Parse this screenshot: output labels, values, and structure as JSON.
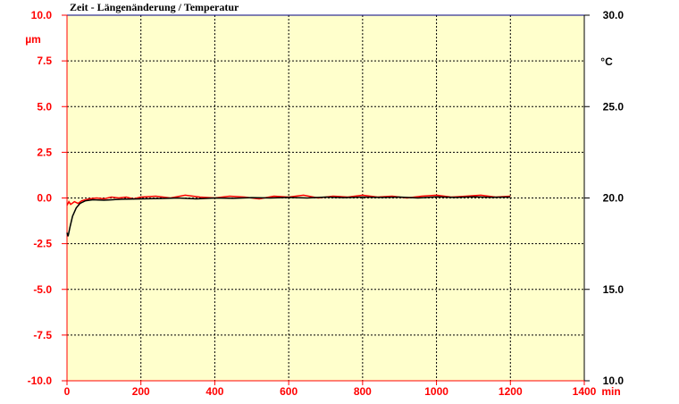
{
  "chart_data": {
    "type": "line",
    "title": "Zeit - Längenänderung  /  Temperatur",
    "xlabel": "min",
    "ylabel_left": "µm",
    "ylabel_right": "°C",
    "xlim": [
      0,
      1400
    ],
    "ylim_left": [
      -10,
      10
    ],
    "ylim_right": [
      10,
      30
    ],
    "xticks": [
      "0",
      "200",
      "400",
      "600",
      "800",
      "1000",
      "1200",
      "1400"
    ],
    "yticks_left": [
      "10.0",
      "7.5",
      "5.0",
      "2.5",
      "0.0",
      "-2.5",
      "-5.0",
      "-7.5",
      "-10.0"
    ],
    "yticks_right": [
      "30.0",
      "25.0",
      "20.0",
      "15.0",
      "10.0"
    ],
    "grid": true,
    "colors": {
      "left_axis": "#ff0000",
      "plot_bg": "#ffffcc",
      "top_border": "#000080"
    },
    "series": [
      {
        "axis": "left",
        "color": "#ff0000",
        "x": [
          0,
          5,
          10,
          20,
          30,
          40,
          50,
          60,
          80,
          100,
          120,
          140,
          160,
          180,
          200,
          240,
          280,
          320,
          360,
          400,
          440,
          480,
          520,
          560,
          600,
          640,
          680,
          720,
          760,
          800,
          840,
          880,
          920,
          960,
          1000,
          1040,
          1080,
          1120,
          1160,
          1200
        ],
        "y": [
          -0.4,
          -0.2,
          -0.35,
          -0.2,
          -0.3,
          -0.15,
          -0.1,
          -0.05,
          0.0,
          -0.05,
          0.05,
          0.0,
          0.05,
          -0.05,
          0.05,
          0.1,
          0.0,
          0.15,
          0.05,
          0.0,
          0.1,
          0.05,
          -0.05,
          0.1,
          0.05,
          0.15,
          0.0,
          0.1,
          0.05,
          0.15,
          0.05,
          0.1,
          0.0,
          0.1,
          0.15,
          0.05,
          0.1,
          0.15,
          0.05,
          0.1
        ]
      },
      {
        "axis": "right",
        "color": "#000000",
        "x": [
          0,
          3,
          8,
          15,
          25,
          35,
          50,
          70,
          100,
          150,
          200,
          250,
          300,
          350,
          400,
          450,
          500,
          550,
          600,
          650,
          700,
          750,
          800,
          850,
          900,
          950,
          1000,
          1050,
          1100,
          1150,
          1200
        ],
        "y": [
          18.1,
          17.9,
          18.4,
          19.0,
          19.45,
          19.7,
          19.85,
          19.9,
          19.88,
          19.93,
          19.95,
          19.97,
          20.0,
          19.95,
          20.0,
          19.98,
          20.02,
          20.0,
          20.03,
          20.0,
          20.05,
          20.02,
          20.05,
          20.03,
          20.05,
          20.0,
          20.06,
          20.03,
          20.06,
          20.04,
          20.05
        ]
      }
    ]
  }
}
